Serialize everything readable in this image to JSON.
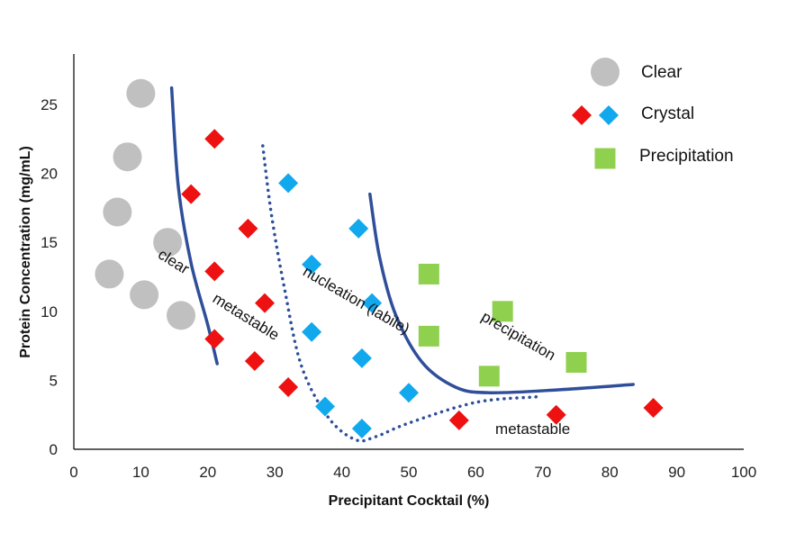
{
  "chart_data": {
    "type": "scatter",
    "title": "",
    "xlabel": "Precipitant Cocktail (%)",
    "ylabel": "Protein Concentration (mg/mL)",
    "xlim": [
      0,
      100
    ],
    "ylim": [
      0,
      28
    ],
    "xticks": [
      0,
      10,
      20,
      30,
      40,
      50,
      60,
      70,
      80,
      90,
      100
    ],
    "yticks": [
      0,
      5,
      10,
      15,
      20,
      25
    ],
    "grid": false,
    "legend_position": "top-right",
    "series": [
      {
        "name": "Clear",
        "marker": "circle",
        "color": "#c0c0c0",
        "points": [
          [
            10,
            25.8
          ],
          [
            8,
            21.2
          ],
          [
            6.5,
            17.2
          ],
          [
            14,
            15
          ],
          [
            5.3,
            12.7
          ],
          [
            10.5,
            11.2
          ],
          [
            16,
            9.7
          ]
        ]
      },
      {
        "name": "Crystal",
        "marker": "diamond",
        "color": "#ee1111",
        "points": [
          [
            21,
            22.5
          ],
          [
            17.5,
            18.5
          ],
          [
            26,
            16
          ],
          [
            21,
            12.9
          ],
          [
            28.5,
            10.6
          ],
          [
            21,
            8
          ],
          [
            27,
            6.4
          ],
          [
            32,
            4.5
          ],
          [
            57.5,
            2.1
          ],
          [
            72,
            2.5
          ],
          [
            86.5,
            3
          ]
        ]
      },
      {
        "name": "Crystal",
        "marker": "diamond",
        "color": "#11a8ee",
        "points": [
          [
            32,
            19.3
          ],
          [
            42.5,
            16
          ],
          [
            35.5,
            13.4
          ],
          [
            44.5,
            10.6
          ],
          [
            35.5,
            8.5
          ],
          [
            43,
            6.6
          ],
          [
            50,
            4.1
          ],
          [
            37.5,
            3.1
          ],
          [
            43,
            1.5
          ]
        ]
      },
      {
        "name": "Precipitation",
        "marker": "square",
        "color": "#8fd14f",
        "points": [
          [
            53,
            12.7
          ],
          [
            64,
            10
          ],
          [
            53,
            8.2
          ],
          [
            75,
            6.3
          ],
          [
            62,
            5.3
          ]
        ]
      }
    ],
    "boundaries": [
      {
        "style": "solid",
        "points": [
          [
            14.6,
            26.2
          ],
          [
            15.6,
            19
          ],
          [
            17.5,
            13.5
          ],
          [
            20,
            9
          ],
          [
            21.4,
            6.2
          ]
        ]
      },
      {
        "style": "dotted",
        "points": [
          [
            28.2,
            22
          ],
          [
            29.5,
            17
          ],
          [
            31.5,
            11.5
          ],
          [
            34,
            6
          ],
          [
            38,
            2.3
          ],
          [
            42,
            0.7
          ],
          [
            45,
            0.9
          ],
          [
            50,
            1.9
          ],
          [
            60,
            3.4
          ],
          [
            69,
            3.8
          ]
        ]
      },
      {
        "style": "solid",
        "points": [
          [
            44.2,
            18.5
          ],
          [
            45.6,
            14
          ],
          [
            48,
            9.8
          ],
          [
            52,
            6.3
          ],
          [
            57,
            4.5
          ],
          [
            62,
            4.1
          ],
          [
            72,
            4.3
          ],
          [
            83.5,
            4.7
          ]
        ]
      }
    ],
    "annotations": [
      {
        "text": "clear",
        "x": 14.5,
        "y": 13.3,
        "rotation": 32
      },
      {
        "text": "metastable",
        "x": 25.3,
        "y": 9.3,
        "rotation": 32
      },
      {
        "text": "nucleation (labile)",
        "x": 41.8,
        "y": 10.5,
        "rotation": 30
      },
      {
        "text": "precipitation",
        "x": 66,
        "y": 7.9,
        "rotation": 30
      },
      {
        "text": "metastable",
        "x": 68.5,
        "y": 1.1,
        "rotation": 0
      }
    ],
    "legend": [
      {
        "label": "Clear",
        "markers": [
          {
            "shape": "circle",
            "color": "#c0c0c0"
          }
        ]
      },
      {
        "label": "Crystal",
        "markers": [
          {
            "shape": "diamond",
            "color": "#ee1111"
          },
          {
            "shape": "diamond",
            "color": "#11a8ee"
          }
        ]
      },
      {
        "label": "Precipitation",
        "markers": [
          {
            "shape": "square",
            "color": "#8fd14f"
          }
        ]
      }
    ]
  }
}
